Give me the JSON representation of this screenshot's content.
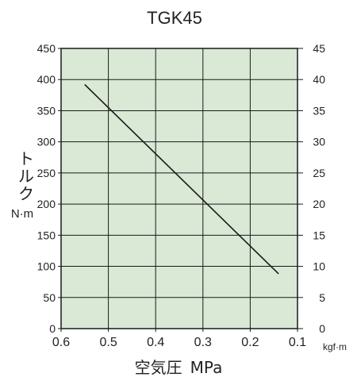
{
  "chart_data": {
    "type": "line",
    "title": "TGK45",
    "xlabel": "空気圧 MPa",
    "ylabel_chars": [
      "ト",
      "ル",
      "ク"
    ],
    "ylabel_unit": "N·m",
    "y2label": "kgf·m",
    "x_ticks": [
      "0.6",
      "0.5",
      "0.4",
      "0.3",
      "0.2",
      "0.1"
    ],
    "y_ticks": [
      "0",
      "50",
      "100",
      "150",
      "200",
      "250",
      "300",
      "350",
      "400",
      "450"
    ],
    "y2_ticks": [
      "0",
      "5",
      "10",
      "15",
      "20",
      "25",
      "30",
      "35",
      "40",
      "45"
    ],
    "xlim": [
      0.6,
      0.1
    ],
    "ylim": [
      0,
      450
    ],
    "y2lim": [
      0,
      45
    ],
    "grid": true,
    "plot_background": "#d9e9d6",
    "line_color": "#1a1a1a",
    "series": [
      {
        "x": [
          0.55,
          0.14
        ],
        "y": [
          392,
          88
        ]
      }
    ]
  }
}
